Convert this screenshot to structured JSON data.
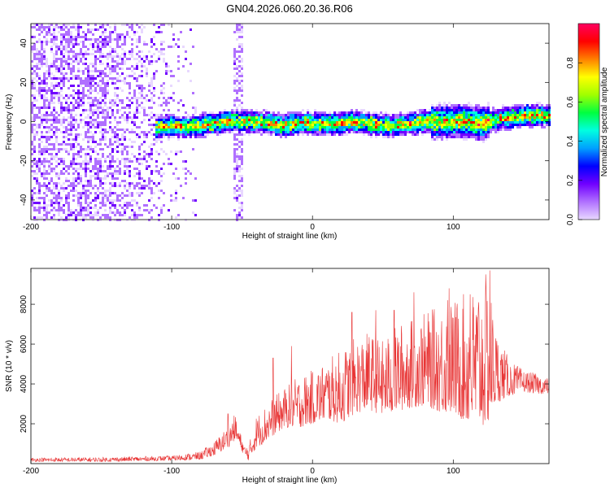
{
  "title": "GN04.2026.060.20.36.R06",
  "chart_data": [
    {
      "type": "heatmap",
      "xlabel": "Height of straight line (km)",
      "ylabel": "Frequency (Hz)",
      "xlim": [
        -200,
        168
      ],
      "ylim": [
        -50,
        50
      ],
      "x_ticks": [
        -200,
        -100,
        0,
        100
      ],
      "y_ticks": [
        -40,
        -20,
        0,
        20,
        40
      ],
      "colorbar": {
        "label": "Normalized spectral amplitude",
        "range": [
          0,
          1
        ],
        "ticks": [
          "0.0",
          "0.2",
          "0.4",
          "0.6",
          "0.8"
        ],
        "colors": [
          "#e8d8ff",
          "#b070ff",
          "#7000ff",
          "#0000ff",
          "#00a0ff",
          "#00ffe0",
          "#00ff40",
          "#a0ff00",
          "#ffff00",
          "#ff8000",
          "#ff0000",
          "#ff0060"
        ]
      },
      "ridge": {
        "x": [
          -110,
          -100,
          -90,
          -80,
          -70,
          -60,
          -50,
          -40,
          -30,
          -20,
          -10,
          0,
          10,
          20,
          30,
          40,
          50,
          60,
          70,
          80,
          90,
          100,
          110,
          120,
          130,
          140,
          150,
          160,
          168
        ],
        "y": [
          -3,
          -2,
          -3,
          -2,
          -1,
          0,
          0,
          0,
          -1,
          -2,
          -1,
          -1,
          -1,
          -1,
          0,
          -1,
          -2,
          -2,
          -1,
          0,
          0,
          0,
          0,
          -1,
          1,
          2,
          3,
          3,
          3
        ]
      },
      "noise_region_x": [
        -200,
        -80
      ],
      "vertical_stripe_x": -53
    },
    {
      "type": "line",
      "xlabel": "Height of straight line (km)",
      "ylabel": "SNR (10 * v/v)",
      "xlim": [
        -200,
        168
      ],
      "ylim": [
        0,
        9800
      ],
      "x_ticks": [
        -200,
        -100,
        0,
        100
      ],
      "y_ticks": [
        2000,
        4000,
        6000,
        8000
      ],
      "color": "#e83535",
      "envelope": {
        "x": [
          -200,
          -150,
          -100,
          -80,
          -70,
          -60,
          -55,
          -52,
          -48,
          -45,
          -40,
          -35,
          -30,
          -20,
          -10,
          0,
          10,
          20,
          30,
          40,
          50,
          60,
          70,
          80,
          90,
          100,
          110,
          120,
          125,
          130,
          140,
          150,
          160,
          168
        ],
        "low": [
          100,
          100,
          150,
          200,
          400,
          800,
          1200,
          900,
          300,
          150,
          800,
          1000,
          1300,
          1800,
          1800,
          2000,
          2200,
          2000,
          2500,
          2700,
          2400,
          2600,
          2800,
          2900,
          2600,
          2500,
          2000,
          1800,
          2000,
          3000,
          3400,
          3600,
          3500,
          3500
        ],
        "high": [
          300,
          320,
          400,
          600,
          1100,
          1900,
          2500,
          1700,
          900,
          1000,
          2400,
          2800,
          3200,
          3800,
          4400,
          4700,
          5200,
          5700,
          6300,
          6600,
          6200,
          7000,
          7300,
          7600,
          7900,
          8300,
          8600,
          9200,
          9700,
          6800,
          5200,
          4700,
          4500,
          4300
        ],
        "peaks": [
          [
            -60,
            2500
          ],
          [
            -28,
            5300
          ],
          [
            -15,
            5900
          ],
          [
            28,
            7600
          ],
          [
            45,
            7700
          ],
          [
            58,
            7700
          ],
          [
            72,
            8600
          ],
          [
            96,
            8200
          ],
          [
            97,
            8800
          ],
          [
            112,
            8500
          ],
          [
            118,
            8100
          ],
          [
            126,
            9700
          ]
        ]
      }
    }
  ]
}
